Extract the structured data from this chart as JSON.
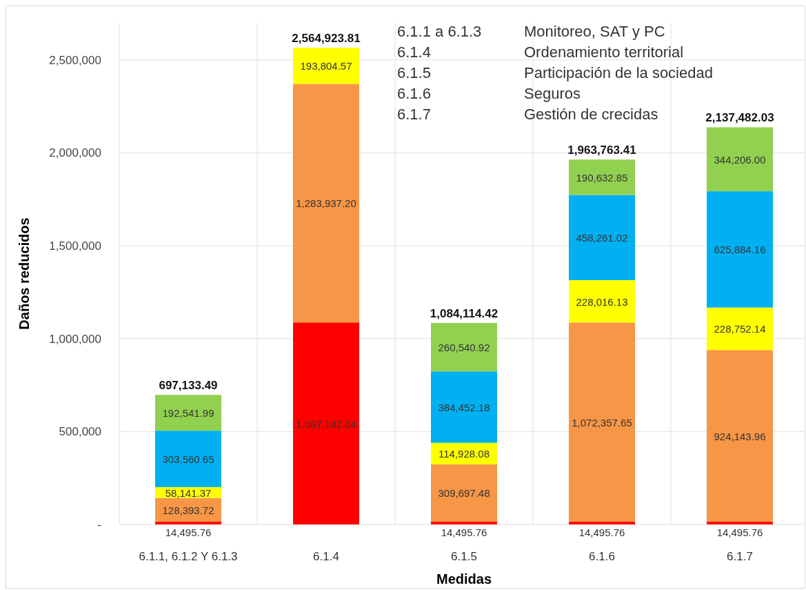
{
  "chart_data": {
    "type": "bar",
    "stacked": true,
    "xlabel": "Medidas",
    "ylabel": "Daños reducidos",
    "categories": [
      "6.1.1, 6.1.2 Y 6.1.3",
      "6.1.4",
      "6.1.5",
      "6.1.6",
      "6.1.7"
    ],
    "series": [
      {
        "color": "#ff0000",
        "values": [
          14495.76,
          1087182.04,
          14495.76,
          14495.76,
          14495.76
        ],
        "value_labels": [
          "14,495.76",
          "1,087,182.04",
          "14,495.76",
          "14,495.76",
          "14,495.76"
        ]
      },
      {
        "color": "#f79646",
        "values": [
          128393.72,
          1283937.2,
          309697.48,
          1072357.65,
          924143.96
        ],
        "value_labels": [
          "128,393.72",
          "1,283,937.20",
          "309,697.48",
          "1,072,357.65",
          "924,143.96"
        ]
      },
      {
        "color": "#ffff00",
        "values": [
          58141.37,
          193804.57,
          114928.08,
          228016.13,
          228752.14
        ],
        "value_labels": [
          "58,141.37",
          "193,804.57",
          "114,928.08",
          "228,016.13",
          "228,752.14"
        ]
      },
      {
        "color": "#00b0f0",
        "values": [
          303560.65,
          null,
          384452.18,
          458261.02,
          625884.16
        ],
        "value_labels": [
          "303,560.65",
          null,
          "384,452.18",
          "458,261.02",
          "625,884.16"
        ]
      },
      {
        "color": "#92d050",
        "values": [
          192541.99,
          null,
          260540.92,
          190632.85,
          344206.0
        ],
        "value_labels": [
          "192,541.99",
          null,
          "260,540.92",
          "190,632.85",
          "344,206.00"
        ]
      }
    ],
    "totals": [
      "697,133.49",
      "2,564,923.81",
      "1,084,114.42",
      "1,963,763.41",
      "2,137,482.03"
    ],
    "ylim": [
      0,
      2700000
    ],
    "yticks": [
      {
        "value": 0,
        "label": "-"
      },
      {
        "value": 500000,
        "label": "500,000"
      },
      {
        "value": 1000000,
        "label": "1,000,000"
      },
      {
        "value": 1500000,
        "label": "1,500,000"
      },
      {
        "value": 2000000,
        "label": "2,000,000"
      },
      {
        "value": 2500000,
        "label": "2,500,000"
      }
    ],
    "grid": true,
    "annotations": [
      "6.1.1 a 6.1.3\tMonitoreo, SAT y PC",
      "6.1.4\tOrdenamiento territorial",
      "6.1.5\tParticipación de la sociedad",
      "6.1.6\tSeguros",
      "6.1.7\tGestión de crecidas"
    ]
  }
}
